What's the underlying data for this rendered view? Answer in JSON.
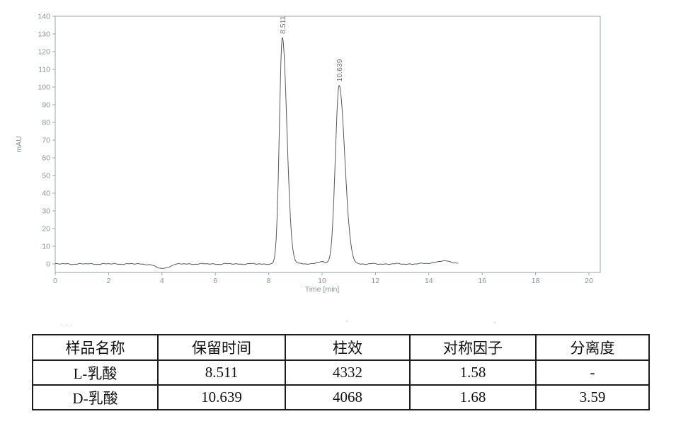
{
  "chart_data": {
    "type": "line",
    "title": "",
    "xlabel": "Time [min]",
    "ylabel": "mAU",
    "xlim": [
      0,
      20.5
    ],
    "ylim": [
      -5,
      140
    ],
    "x_ticks": [
      0,
      2,
      4,
      6,
      8,
      10,
      12,
      14,
      16,
      18,
      20
    ],
    "y_ticks": [
      0,
      10,
      20,
      30,
      40,
      50,
      60,
      70,
      80,
      90,
      100,
      110,
      120,
      130,
      140
    ],
    "grid": false,
    "legend": null,
    "trace_start_min": 0,
    "trace_end_min": 15.1,
    "peaks": [
      {
        "label": "8.511",
        "rt_min": 8.511,
        "height_mau": 128,
        "sigma_left": 0.11,
        "sigma_right": 0.17
      },
      {
        "label": "10.639",
        "rt_min": 10.639,
        "height_mau": 101,
        "sigma_left": 0.14,
        "sigma_right": 0.21
      }
    ],
    "baseline_features": [
      {
        "kind": "dip",
        "center_min": 4.0,
        "amplitude_mau": -2.6,
        "sigma": 0.24
      },
      {
        "kind": "bump",
        "center_min": 9.92,
        "amplitude_mau": 1.2,
        "sigma": 0.16
      },
      {
        "kind": "bump",
        "center_min": 14.55,
        "amplitude_mau": 1.6,
        "sigma": 0.35
      }
    ],
    "colors": {
      "trace": "#55585c",
      "axis": "#9aa3ad",
      "tick_label": "#8b9099",
      "peak_label": "#6f747c"
    }
  },
  "artifacts": {
    "dots": "···",
    "mark1": ",",
    "mark2": ","
  },
  "table": {
    "headers": [
      "样品名称",
      "保留时间",
      "柱效",
      "对称因子",
      "分离度"
    ],
    "rows": [
      [
        "L-乳酸",
        "8.511",
        "4332",
        "1.58",
        "-"
      ],
      [
        "D-乳酸",
        "10.639",
        "4068",
        "1.68",
        "3.59"
      ]
    ]
  }
}
